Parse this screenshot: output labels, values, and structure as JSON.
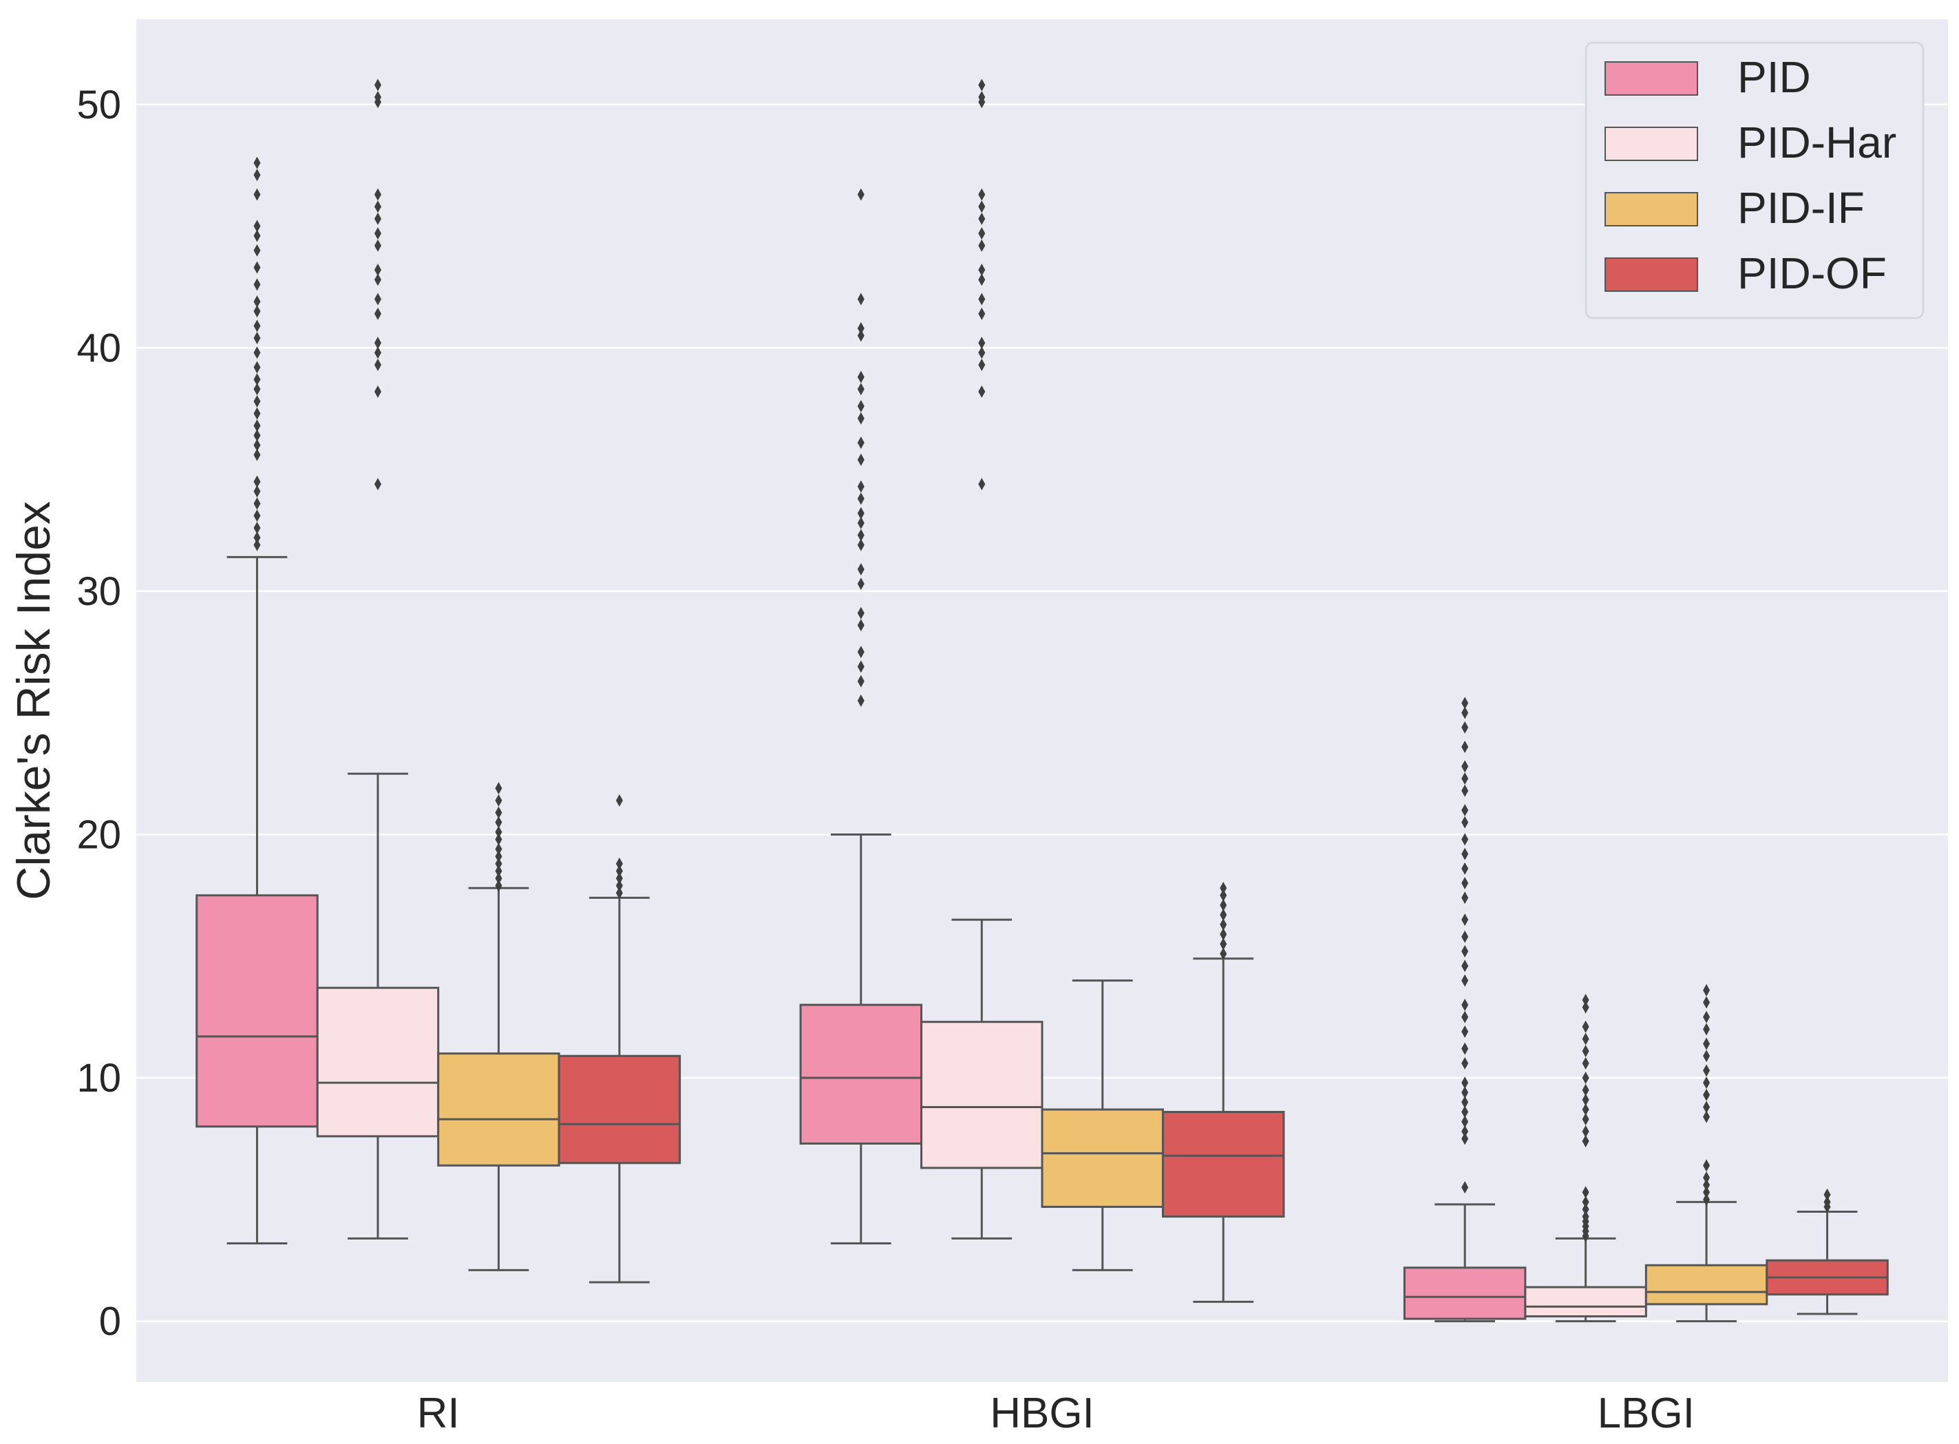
{
  "chart_data": {
    "type": "box",
    "title": "",
    "xlabel": "",
    "ylabel": "Clarke's Risk Index",
    "ylim": [
      -2.5,
      53.5
    ],
    "yticks": [
      0,
      10,
      20,
      30,
      40,
      50
    ],
    "grid": true,
    "legend_position": "top-right",
    "categories": [
      "RI",
      "HBGI",
      "LBGI"
    ],
    "series": [
      {
        "name": "PID",
        "color": "#F191AE",
        "boxes": [
          {
            "min": 3.2,
            "q1": 8.0,
            "median": 11.7,
            "q3": 17.5,
            "max": 31.4,
            "outliers": [
              31.9,
              32.2,
              32.6,
              33.1,
              33.6,
              34.1,
              34.5,
              35.6,
              36.0,
              36.4,
              36.8,
              37.3,
              37.8,
              38.3,
              38.7,
              39.2,
              39.8,
              40.4,
              40.9,
              41.5,
              41.9,
              42.6,
              43.3,
              44.0,
              44.6,
              45.0,
              46.3,
              47.1,
              47.6
            ]
          },
          {
            "min": 3.2,
            "q1": 7.3,
            "median": 10.0,
            "q3": 13.0,
            "max": 20.0,
            "outliers": [
              25.5,
              26.3,
              26.9,
              27.5,
              28.6,
              29.1,
              30.3,
              30.9,
              31.9,
              32.3,
              32.8,
              33.2,
              33.8,
              34.3,
              35.4,
              36.1,
              37.1,
              37.6,
              38.3,
              38.8,
              40.5,
              40.8,
              42.0,
              46.3
            ]
          },
          {
            "min": 0.0,
            "q1": 0.1,
            "median": 1.0,
            "q3": 2.2,
            "max": 4.8,
            "outliers": [
              5.5,
              7.5,
              7.8,
              8.2,
              8.6,
              9.0,
              9.4,
              9.8,
              10.6,
              11.2,
              11.9,
              12.5,
              13.0,
              14.0,
              14.6,
              15.2,
              15.8,
              16.5,
              17.4,
              18.0,
              18.6,
              19.2,
              19.8,
              20.5,
              21.0,
              21.8,
              22.3,
              22.8,
              23.6,
              24.4,
              25.0,
              25.4
            ]
          }
        ]
      },
      {
        "name": "PID-Har",
        "color": "#FAE1E3",
        "boxes": [
          {
            "min": 3.4,
            "q1": 7.6,
            "median": 9.8,
            "q3": 13.7,
            "max": 22.5,
            "outliers": [
              34.4,
              38.2,
              39.3,
              39.8,
              40.2,
              41.4,
              42.0,
              42.8,
              43.2,
              44.2,
              44.7,
              45.3,
              45.8,
              46.3,
              50.1,
              50.3,
              50.8
            ]
          },
          {
            "min": 3.4,
            "q1": 6.3,
            "median": 8.8,
            "q3": 12.3,
            "max": 16.5,
            "outliers": [
              34.4,
              38.2,
              39.3,
              39.8,
              40.2,
              41.4,
              42.0,
              42.8,
              43.2,
              44.2,
              44.7,
              45.3,
              45.8,
              46.3,
              50.1,
              50.3,
              50.8
            ]
          },
          {
            "min": 0.0,
            "q1": 0.2,
            "median": 0.6,
            "q3": 1.4,
            "max": 3.4,
            "outliers": [
              3.5,
              3.7,
              3.9,
              4.1,
              4.3,
              4.6,
              4.9,
              5.3,
              7.4,
              7.8,
              8.3,
              8.7,
              9.1,
              9.5,
              10.0,
              10.6,
              11.1,
              11.6,
              12.1,
              12.9,
              13.2
            ]
          }
        ]
      },
      {
        "name": "PID-IF",
        "color": "#EEC170",
        "boxes": [
          {
            "min": 2.1,
            "q1": 6.4,
            "median": 8.3,
            "q3": 11.0,
            "max": 17.8,
            "outliers": [
              17.9,
              18.2,
              18.5,
              18.8,
              19.1,
              19.4,
              19.8,
              20.1,
              20.5,
              20.9,
              21.4,
              21.9
            ]
          },
          {
            "min": 2.1,
            "q1": 4.7,
            "median": 6.9,
            "q3": 8.7,
            "max": 14.0,
            "outliers": []
          },
          {
            "min": 0.0,
            "q1": 0.7,
            "median": 1.2,
            "q3": 2.3,
            "max": 4.9,
            "outliers": [
              5.0,
              5.3,
              5.6,
              5.9,
              6.4,
              8.4,
              8.8,
              9.3,
              9.8,
              10.3,
              10.9,
              11.4,
              12.0,
              12.5,
              13.1,
              13.6
            ]
          }
        ]
      },
      {
        "name": "PID-OF",
        "color": "#D85A5A",
        "boxes": [
          {
            "min": 1.6,
            "q1": 6.5,
            "median": 8.1,
            "q3": 10.9,
            "max": 17.4,
            "outliers": [
              17.6,
              17.9,
              18.2,
              18.5,
              18.8,
              21.4
            ]
          },
          {
            "min": 0.8,
            "q1": 4.3,
            "median": 6.8,
            "q3": 8.6,
            "max": 14.9,
            "outliers": [
              15.1,
              15.5,
              15.9,
              16.3,
              16.7,
              17.1,
              17.5,
              17.8
            ]
          },
          {
            "min": 0.3,
            "q1": 1.1,
            "median": 1.8,
            "q3": 2.5,
            "max": 4.5,
            "outliers": [
              4.7,
              4.9,
              5.2
            ]
          }
        ]
      }
    ]
  }
}
